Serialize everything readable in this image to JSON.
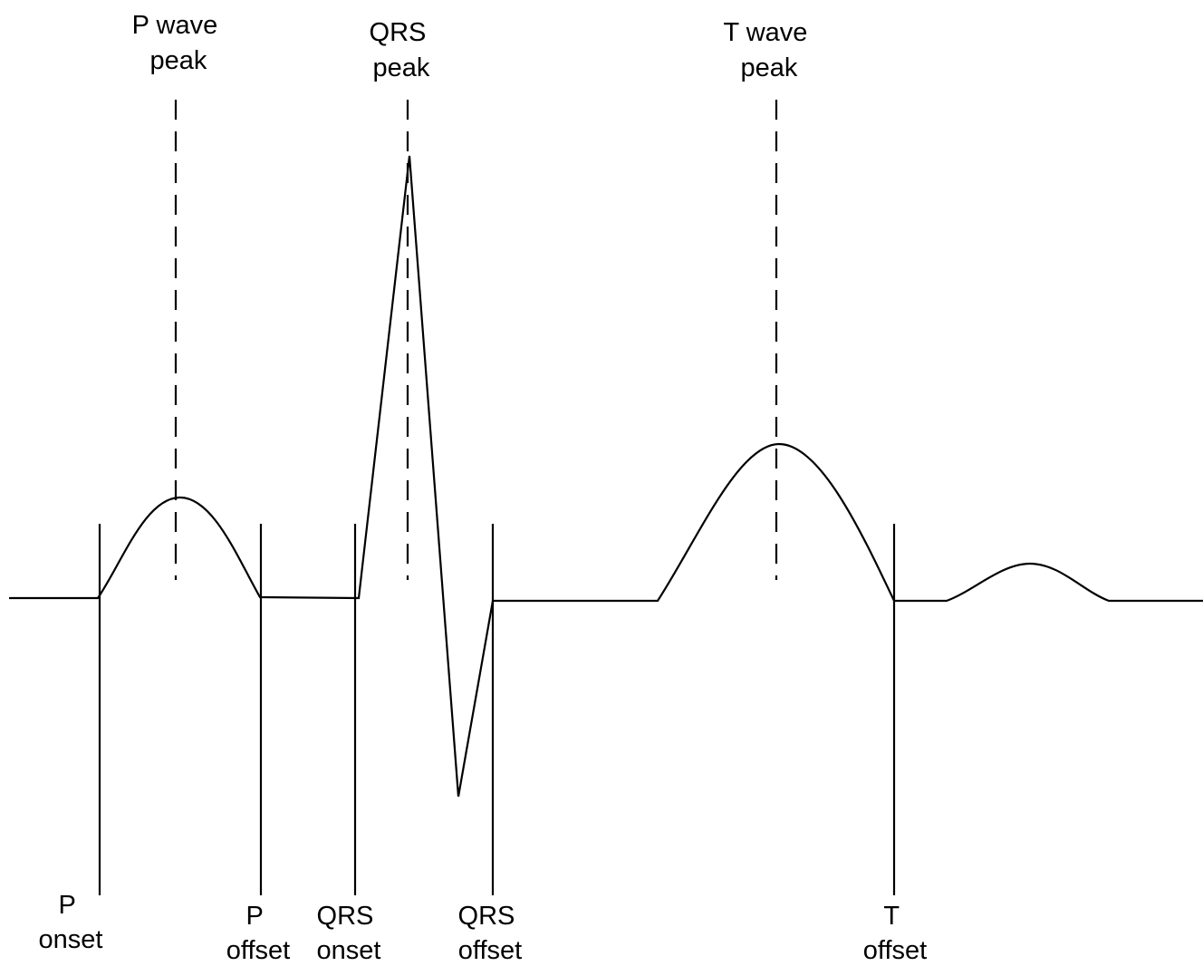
{
  "diagram": {
    "peak_labels": {
      "p_wave": [
        "P wave",
        "peak"
      ],
      "qrs": [
        "QRS",
        "peak"
      ],
      "t_wave": [
        "T wave",
        "peak"
      ]
    },
    "boundary_labels": {
      "p_onset": [
        "P",
        "onset"
      ],
      "p_offset": [
        "P",
        "offset"
      ],
      "qrs_onset": [
        "QRS",
        "onset"
      ],
      "qrs_offset": [
        "QRS",
        "offset"
      ],
      "t_offset": [
        "T",
        "offset"
      ]
    }
  }
}
